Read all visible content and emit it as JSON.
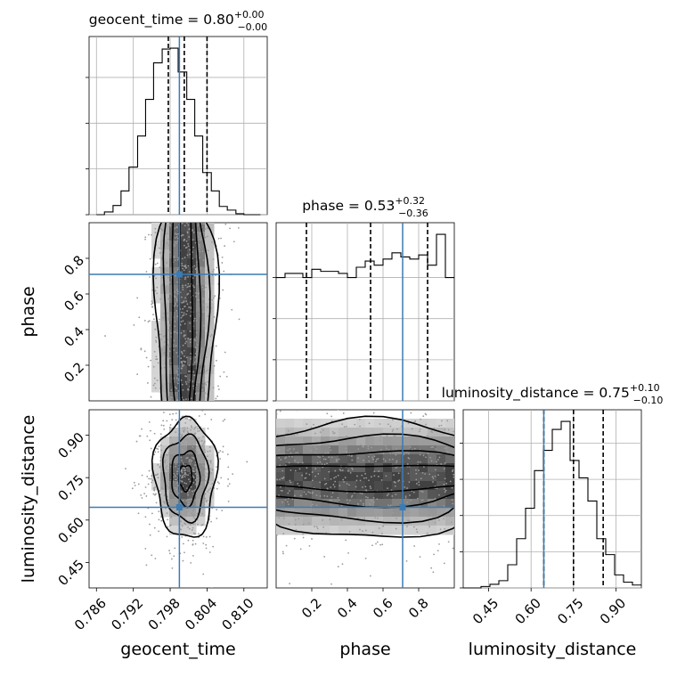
{
  "chart_data": {
    "type": "corner",
    "parameters": [
      "geocent_time",
      "phase",
      "luminosity_distance"
    ],
    "truths": [
      0.7995,
      0.71,
      0.645
    ],
    "ranges": [
      [
        0.7848,
        0.8138
      ],
      [
        0.0,
        1.0
      ],
      [
        0.36,
        0.99
      ]
    ],
    "diagonals": [
      {
        "param": "geocent_time",
        "title": "geocent_time = 0.80",
        "title_sup": "+0.00",
        "title_sub": "−0.00",
        "quantiles": [
          0.7977,
          0.8003,
          0.804
        ],
        "bin_edges": [
          0.786,
          0.7873,
          0.7887,
          0.79,
          0.7913,
          0.7927,
          0.794,
          0.7953,
          0.7967,
          0.798,
          0.7993,
          0.8007,
          0.802,
          0.8033,
          0.8047,
          0.806,
          0.8073,
          0.8087,
          0.81,
          0.8113,
          0.8127
        ],
        "counts": [
          0,
          3,
          10,
          26,
          52,
          86,
          126,
          166,
          181,
          182,
          156,
          126,
          86,
          46,
          26,
          9,
          5,
          1,
          0,
          0
        ],
        "yticks": [
          0,
          50,
          100,
          150
        ]
      },
      {
        "param": "phase",
        "title": "phase = 0.53",
        "title_sup": "+0.32",
        "title_sub": "−0.36",
        "quantiles": [
          0.17,
          0.53,
          0.85
        ],
        "bin_edges": [
          0.0,
          0.05,
          0.1,
          0.15,
          0.2,
          0.25,
          0.3,
          0.35,
          0.4,
          0.45,
          0.5,
          0.55,
          0.6,
          0.65,
          0.7,
          0.75,
          0.8,
          0.85,
          0.9,
          0.95,
          1.0
        ],
        "counts": [
          300,
          310,
          310,
          300,
          320,
          315,
          315,
          310,
          300,
          325,
          340,
          330,
          345,
          360,
          350,
          345,
          355,
          330,
          405,
          300
        ],
        "yticks": [
          0,
          100,
          200,
          300
        ]
      },
      {
        "param": "luminosity_distance",
        "title": "luminosity_distance = 0.75",
        "title_sup": "+0.10",
        "title_sub": "−0.10",
        "quantiles": [
          0.645,
          0.75,
          0.855
        ],
        "bin_edges": [
          0.36,
          0.3915,
          0.423,
          0.4545,
          0.486,
          0.5175,
          0.549,
          0.5805,
          0.612,
          0.6435,
          0.675,
          0.7065,
          0.738,
          0.7695,
          0.801,
          0.8325,
          0.864,
          0.8955,
          0.927,
          0.9585,
          0.99
        ],
        "counts": [
          0,
          0,
          2,
          5,
          10,
          32,
          68,
          110,
          162,
          190,
          219,
          230,
          176,
          152,
          120,
          68,
          46,
          18,
          8,
          4
        ],
        "yticks": [
          0,
          50,
          100,
          150,
          200
        ]
      }
    ],
    "axes": {
      "geocent_time": {
        "ticks": [
          0.786,
          0.792,
          0.798,
          0.804,
          0.81
        ],
        "labels": [
          "0.786",
          "0.792",
          "0.798",
          "0.804",
          "0.810"
        ]
      },
      "phase": {
        "ticks": [
          0.2,
          0.4,
          0.6,
          0.8
        ],
        "labels": [
          "0.2",
          "0.4",
          "0.6",
          "0.8"
        ]
      },
      "luminosity_distance": {
        "ticks": [
          0.45,
          0.6,
          0.75,
          0.9
        ],
        "labels": [
          "0.45",
          "0.60",
          "0.75",
          "0.90"
        ]
      }
    },
    "grid": true
  }
}
